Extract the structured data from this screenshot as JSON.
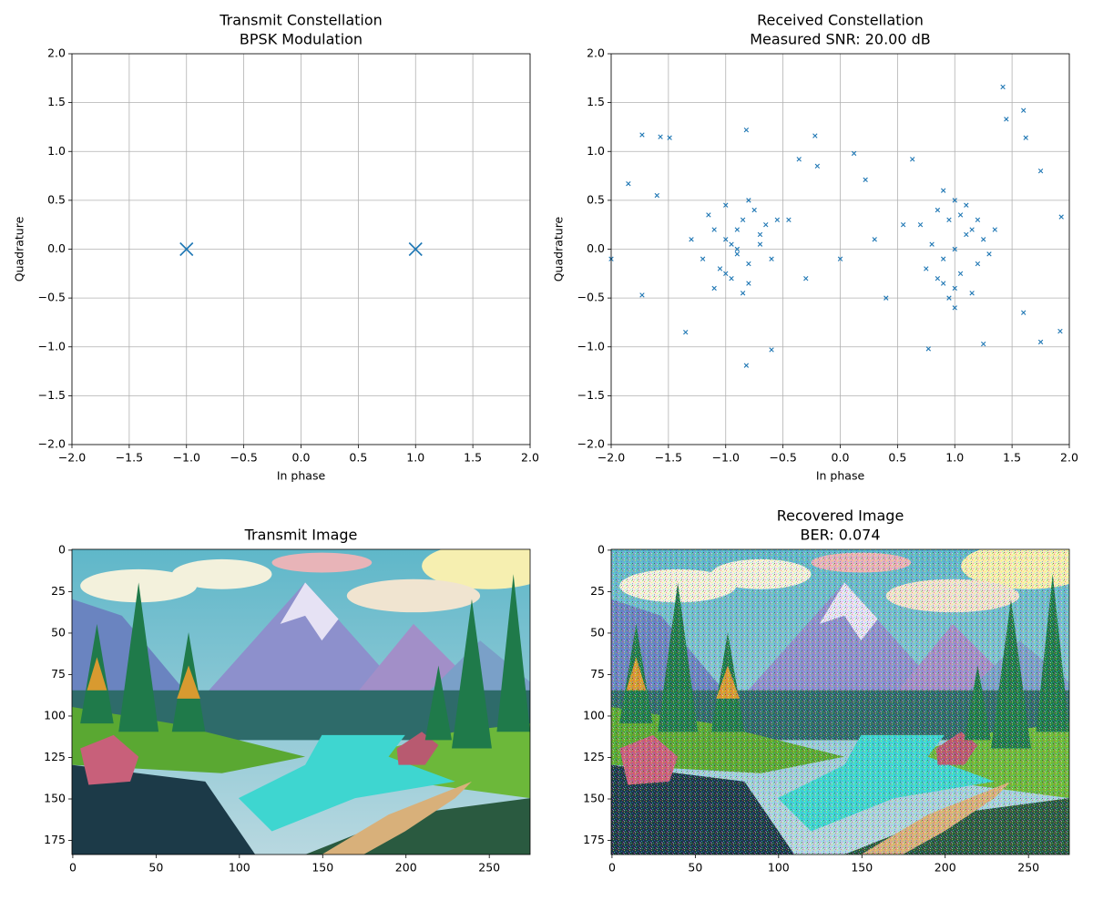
{
  "chart_data": [
    {
      "type": "scatter",
      "title": "Transmit Constellation",
      "subtitle": "BPSK Modulation",
      "x_label": "In phase",
      "y_label": "Quadrature",
      "color": "#1f77b4",
      "grid": true,
      "x": [
        -1,
        1
      ],
      "y": [
        0,
        0
      ],
      "xlim": [
        -2,
        2
      ],
      "ylim": [
        -2,
        2
      ],
      "xticks": [
        {
          "value": -2,
          "label": "−2.0"
        },
        {
          "value": -1.5,
          "label": "−1.5"
        },
        {
          "value": -1,
          "label": "−1.0"
        },
        {
          "value": -0.5,
          "label": "−0.5"
        },
        {
          "value": 0,
          "label": "0.0"
        },
        {
          "value": 0.5,
          "label": "0.5"
        },
        {
          "value": 1,
          "label": "1.0"
        },
        {
          "value": 1.5,
          "label": "1.5"
        },
        {
          "value": 2,
          "label": "2.0"
        }
      ],
      "yticks": [
        {
          "value": -2,
          "label": "−2.0"
        },
        {
          "value": -1.5,
          "label": "−1.5"
        },
        {
          "value": -1,
          "label": "−1.0"
        },
        {
          "value": -0.5,
          "label": "−0.5"
        },
        {
          "value": 0,
          "label": "0.0"
        },
        {
          "value": 0.5,
          "label": "0.5"
        },
        {
          "value": 1,
          "label": "1.0"
        },
        {
          "value": 1.5,
          "label": "1.5"
        },
        {
          "value": 2,
          "label": "2.0"
        }
      ]
    },
    {
      "type": "scatter",
      "title": "Received Constellation",
      "subtitle": "Measured SNR: 20.00 dB",
      "x_label": "In phase",
      "y_label": "Quadrature",
      "color": "#1f77b4",
      "grid": true,
      "x": [
        -0.9,
        -1.0,
        -0.8,
        -1.1,
        -0.85,
        -0.95,
        -0.7,
        -1.2,
        -0.75,
        -1.05,
        -0.9,
        -0.65,
        -1.15,
        -0.8,
        -1.0,
        -0.6,
        -1.3,
        -0.9,
        -0.85,
        -1.0,
        -0.7,
        -0.95,
        -1.1,
        -0.8,
        -0.55,
        1.0,
        0.9,
        1.1,
        0.95,
        1.05,
        0.8,
        1.2,
        0.85,
        1.15,
        1.0,
        0.75,
        1.25,
        0.9,
        1.1,
        1.0,
        0.7,
        1.3,
        0.95,
        1.05,
        0.85,
        1.2,
        1.0,
        0.9,
        1.15,
        1.35,
        -2,
        -1.85,
        -1.73,
        -1.57,
        -1.49,
        -1.73,
        -1.35,
        -0.82,
        -0.82,
        -0.6,
        -0.36,
        -0.22,
        -0.2,
        0.12,
        0.22,
        0.63,
        0.77,
        1.42,
        1.45,
        1.6,
        1.62,
        1.75,
        1.93,
        1.92,
        1.25,
        0,
        0.3,
        -0.3,
        0.4,
        -0.45,
        1.6,
        1.75,
        -1.6,
        0.55
      ],
      "y": [
        0.0,
        0.1,
        -0.15,
        0.2,
        0.3,
        -0.3,
        0.05,
        -0.1,
        0.4,
        -0.2,
        -0.05,
        0.25,
        0.35,
        -0.35,
        0.45,
        -0.1,
        0.1,
        0.2,
        -0.45,
        -0.25,
        0.15,
        0.05,
        -0.4,
        0.5,
        0.3,
        0.0,
        -0.1,
        0.15,
        0.3,
        -0.25,
        0.05,
        -0.15,
        0.4,
        0.2,
        -0.4,
        -0.2,
        0.1,
        -0.35,
        0.45,
        0.5,
        0.25,
        -0.05,
        -0.5,
        0.35,
        -0.3,
        0.3,
        -0.6,
        0.6,
        -0.45,
        0.2,
        -0.1,
        0.67,
        1.17,
        1.15,
        1.14,
        -0.47,
        -0.85,
        1.22,
        -1.19,
        -1.03,
        0.92,
        1.16,
        0.85,
        0.98,
        0.71,
        0.92,
        -1.02,
        1.66,
        1.33,
        1.42,
        1.14,
        -0.95,
        0.33,
        -0.84,
        -0.97,
        -0.1,
        0.1,
        -0.3,
        -0.5,
        0.3,
        -0.65,
        0.8,
        0.55,
        0.25
      ],
      "xlim": [
        -2,
        2
      ],
      "ylim": [
        -2,
        2
      ],
      "xticks": [
        {
          "value": -2,
          "label": "−2.0"
        },
        {
          "value": -1.5,
          "label": "−1.5"
        },
        {
          "value": -1,
          "label": "−1.0"
        },
        {
          "value": -0.5,
          "label": "−0.5"
        },
        {
          "value": 0,
          "label": "0.0"
        },
        {
          "value": 0.5,
          "label": "0.5"
        },
        {
          "value": 1,
          "label": "1.0"
        },
        {
          "value": 1.5,
          "label": "1.5"
        },
        {
          "value": 2,
          "label": "2.0"
        }
      ],
      "yticks": [
        {
          "value": -2,
          "label": "−2.0"
        },
        {
          "value": -1.5,
          "label": "−1.5"
        },
        {
          "value": -1,
          "label": "−1.0"
        },
        {
          "value": -0.5,
          "label": "−0.5"
        },
        {
          "value": 0,
          "label": "0.0"
        },
        {
          "value": 0.5,
          "label": "0.5"
        },
        {
          "value": 1,
          "label": "1.0"
        },
        {
          "value": 1.5,
          "label": "1.5"
        },
        {
          "value": 2,
          "label": "2.0"
        }
      ]
    },
    {
      "type": "image",
      "title": "Transmit Image",
      "grid": false,
      "xlim": [
        -0.5,
        274.5
      ],
      "ylim": [
        183.5,
        -0.5
      ],
      "xticks": [
        0,
        50,
        100,
        150,
        200,
        250
      ],
      "yticks": [
        0,
        25,
        50,
        75,
        100,
        125,
        150,
        175
      ]
    },
    {
      "type": "image",
      "title": "Recovered Image",
      "subtitle": "BER: 0.074",
      "grid": false,
      "noise": true,
      "xlim": [
        -0.5,
        274.5
      ],
      "ylim": [
        183.5,
        -0.5
      ],
      "xticks": [
        0,
        50,
        100,
        150,
        200,
        250
      ],
      "yticks": [
        0,
        25,
        50,
        75,
        100,
        125,
        150,
        175
      ]
    }
  ]
}
